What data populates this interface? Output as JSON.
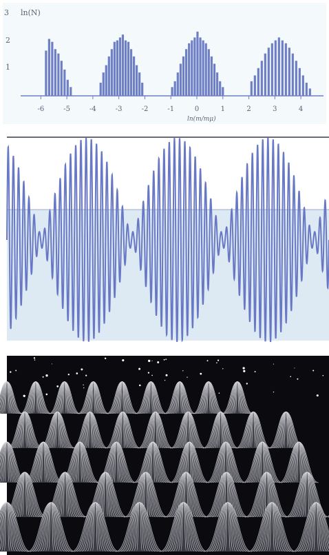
{
  "chart_data": [
    {
      "type": "bar",
      "ylabel": "ln(N)",
      "xlabel": "ln(m/mμ)",
      "yticks": [
        "1",
        "2",
        "3"
      ],
      "xticks": [
        "-6",
        "-5",
        "-4",
        "-3",
        "-2",
        "-1",
        "0",
        "1",
        "2",
        "3",
        "4"
      ],
      "xlim": [
        -6.3,
        4.5
      ],
      "ylim": [
        0,
        3
      ],
      "grid": false,
      "bar_color": "#6f7fc6",
      "background": "#f4f9fb",
      "clusters": [
        {
          "start": -5.8,
          "end": -4.85,
          "values": [
            1.55,
            1.95,
            1.85,
            1.6,
            1.45,
            1.2,
            0.9,
            0.55,
            0.3
          ]
        },
        {
          "start": -3.7,
          "end": -2.1,
          "values": [
            0.45,
            0.8,
            1.05,
            1.35,
            1.6,
            1.85,
            1.9,
            2.0,
            2.1,
            1.9,
            1.85,
            1.6,
            1.35,
            1.05,
            0.8,
            0.45
          ]
        },
        {
          "start": -0.95,
          "end": 1.0,
          "values": [
            0.3,
            0.5,
            0.8,
            1.1,
            1.35,
            1.6,
            1.8,
            1.9,
            2.0,
            2.2,
            2.0,
            1.9,
            1.8,
            1.6,
            1.35,
            1.1,
            0.8,
            0.5,
            0.3
          ]
        },
        {
          "start": 2.1,
          "end": 4.35,
          "values": [
            0.5,
            0.7,
            0.95,
            1.2,
            1.45,
            1.65,
            1.8,
            1.9,
            2.0,
            1.9,
            1.8,
            1.65,
            1.45,
            1.2,
            0.95,
            0.7,
            0.45,
            0.25
          ]
        }
      ]
    },
    {
      "type": "line",
      "description_series": "oscillation",
      "line_color": "#6878c4",
      "background_top": "#ffffff",
      "background_bottom": "#dde9f3",
      "carrier_cycles": 62,
      "envelope_periods": 3.55,
      "envelope_phase": 0.12,
      "floor_amplitude": 0.08,
      "peak_amplitude": 1.0
    },
    {
      "type": "surface",
      "background": "#0b0b0f",
      "mesh_color": "#d8d8de",
      "rows": 5,
      "peaks_per_row": 8,
      "star_count": 55
    }
  ]
}
